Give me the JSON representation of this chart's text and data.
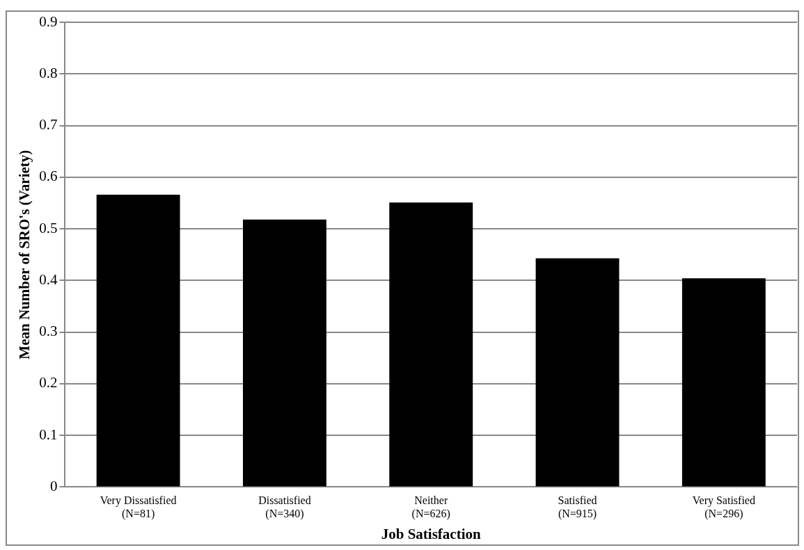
{
  "chart_data": {
    "type": "bar",
    "xlabel": "Job Satisfaction",
    "ylabel": "Mean Number of SRO's (Variety)",
    "categories": [
      "Very Dissatisfied\n(N=81)",
      "Dissatisfied\n(N=340)",
      "Neither\n(N=626)",
      "Satisfied\n(N=915)",
      "Very Satisfied\n(N=296)"
    ],
    "values": [
      0.566,
      0.518,
      0.551,
      0.443,
      0.404
    ],
    "color": "#000000",
    "ylim": [
      0,
      0.9
    ],
    "yticks": [
      0,
      0.1,
      0.2,
      0.3,
      0.4,
      0.5,
      0.6,
      0.7,
      0.8,
      0.9
    ],
    "grid": "y",
    "legend": false
  }
}
